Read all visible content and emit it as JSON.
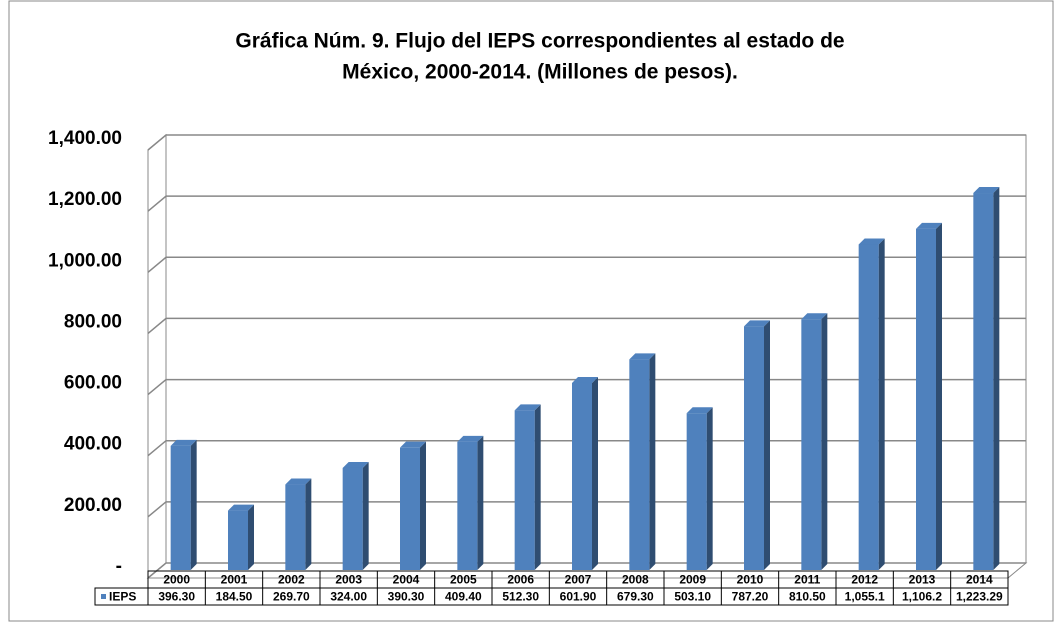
{
  "chart_data": {
    "type": "bar3d",
    "title": "Gráfica Núm. 9. Flujo del IEPS correspondientes al estado de México, 2000-2014. (Millones de pesos).",
    "title_lines": [
      "Gráfica Núm. 9. Flujo del IEPS correspondientes al estado de",
      "México, 2000-2014. (Millones de pesos)."
    ],
    "categories": [
      "2000",
      "2001",
      "2002",
      "2003",
      "2004",
      "2005",
      "2006",
      "2007",
      "2008",
      "2009",
      "2010",
      "2011",
      "2012",
      "2013",
      "2014"
    ],
    "series": [
      {
        "name": "IEPS",
        "color": "#4f81bd",
        "values": [
          396.3,
          184.5,
          269.7,
          324.0,
          390.3,
          409.4,
          512.3,
          601.9,
          679.3,
          503.1,
          787.2,
          810.5,
          1055.1,
          1106.2,
          1223.29
        ],
        "value_labels": [
          "396.30",
          "184.50",
          "269.70",
          "324.00",
          "390.30",
          "409.40",
          "512.30",
          "601.90",
          "679.30",
          "503.10",
          "787.20",
          "810.50",
          "1,055.1",
          "1,106.2",
          "1,223.29"
        ]
      }
    ],
    "ylim": [
      0,
      1400
    ],
    "yticks": [
      {
        "value": 0,
        "label": "-"
      },
      {
        "value": 200,
        "label": "200.00"
      },
      {
        "value": 400,
        "label": "400.00"
      },
      {
        "value": 600,
        "label": "600.00"
      },
      {
        "value": 800,
        "label": "800.00"
      },
      {
        "value": 1000,
        "label": "1,000.00"
      },
      {
        "value": 1200,
        "label": "1,200.00"
      },
      {
        "value": 1400,
        "label": "1,400.00"
      }
    ],
    "grid": true,
    "data_table": true
  }
}
